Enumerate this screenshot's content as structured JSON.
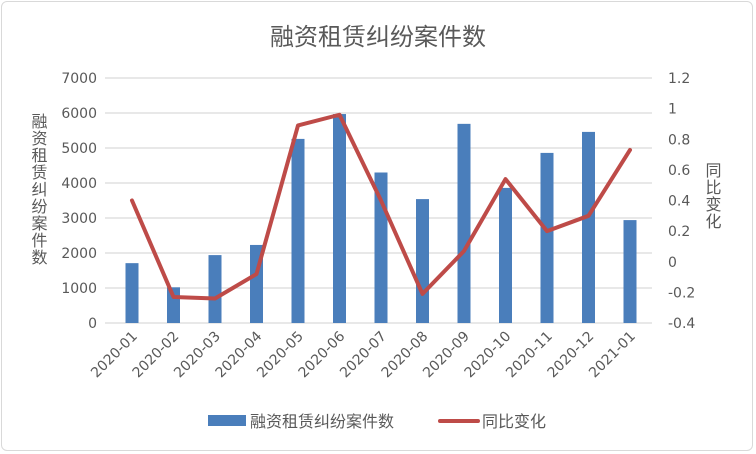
{
  "chart_data": {
    "type": "bar",
    "title": "融资租赁纠纷案件数",
    "ylabel": "融资租赁纠纷案件数",
    "y2label": "同比变化",
    "xlabel": "",
    "categories": [
      "2020-01",
      "2020-02",
      "2020-03",
      "2020-04",
      "2020-05",
      "2020-06",
      "2020-07",
      "2020-08",
      "2020-09",
      "2020-10",
      "2020-11",
      "2020-12",
      "2021-01"
    ],
    "ylim": [
      0,
      7000
    ],
    "y2lim": [
      -0.4,
      1.2
    ],
    "yticks": [
      "0",
      "1000",
      "2000",
      "3000",
      "4000",
      "5000",
      "6000",
      "7000"
    ],
    "y2ticks": [
      "-0.4",
      "-0.2",
      "0",
      "0.2",
      "0.4",
      "0.6",
      "0.8",
      "1",
      "1.2"
    ],
    "grid": true,
    "legend_position": "bottom",
    "series": [
      {
        "name": "融资租赁纠纷案件数",
        "type": "bar",
        "axis": "left",
        "color": "#4a7ebb",
        "values": [
          1710,
          1020,
          1940,
          2230,
          5260,
          5970,
          4300,
          3540,
          5690,
          3860,
          4860,
          5460,
          2940
        ]
      },
      {
        "name": "同比变化",
        "type": "line",
        "axis": "right",
        "color": "#be4b48",
        "values": [
          0.4,
          -0.23,
          -0.24,
          -0.08,
          0.89,
          0.96,
          0.4,
          -0.21,
          0.07,
          0.54,
          0.2,
          0.3,
          0.73
        ]
      }
    ]
  }
}
